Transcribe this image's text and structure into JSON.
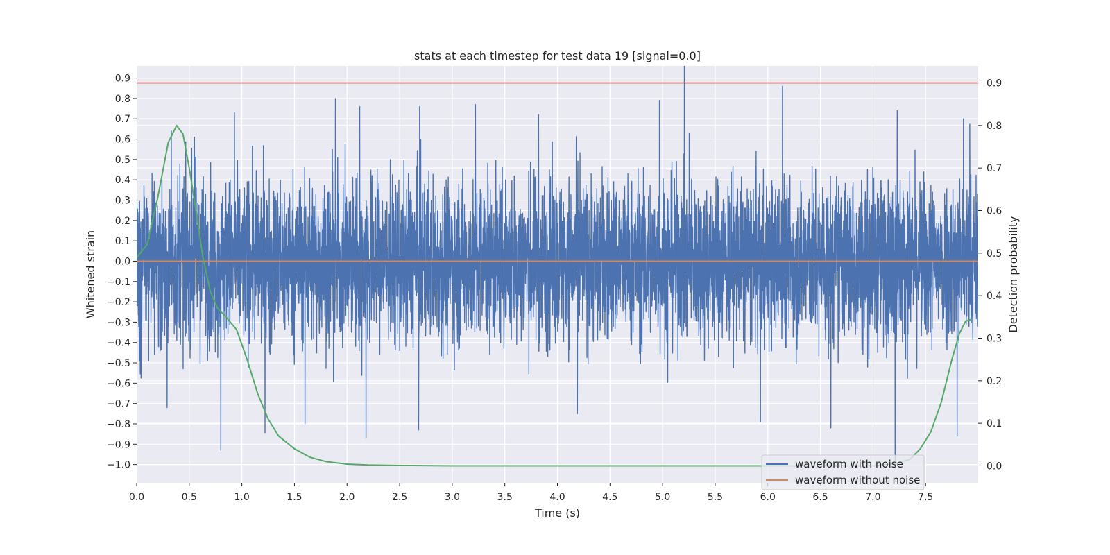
{
  "chart_data": {
    "type": "line",
    "title": "stats at each timestep for test data 19 [signal=0.0]",
    "xlabel": "Time (s)",
    "ylabel": "Whitened strain",
    "y2label": "Detection probability",
    "xlim": [
      0.0,
      8.0
    ],
    "ylim": [
      -1.09,
      0.96
    ],
    "y2lim": [
      -0.04,
      0.94
    ],
    "grid": true,
    "legend_placement": "lower-right",
    "x_ticks": [
      "0.0",
      "0.5",
      "1.0",
      "1.5",
      "2.0",
      "2.5",
      "3.0",
      "3.5",
      "4.0",
      "4.5",
      "5.0",
      "5.5",
      "6.0",
      "6.5",
      "7.0",
      "7.5"
    ],
    "y_ticks": [
      "0.9",
      "0.8",
      "0.7",
      "0.6",
      "0.5",
      "0.4",
      "0.3",
      "0.2",
      "0.1",
      "0.0",
      "−0.1",
      "−0.2",
      "−0.3",
      "−0.4",
      "−0.5",
      "−0.6",
      "−0.7",
      "−0.8",
      "−0.9",
      "−1.0"
    ],
    "y2_ticks": [
      "0.9",
      "0.8",
      "0.7",
      "0.6",
      "0.5",
      "0.4",
      "0.3",
      "0.2",
      "0.1",
      "0.0"
    ],
    "threshold": {
      "value": 0.9,
      "axis": "y2",
      "color": "#c44e52"
    },
    "series": [
      {
        "name": "waveform with noise",
        "axis": "y",
        "color": "#4c72b0",
        "envelope_typical": 0.42,
        "peaks": [
          {
            "x": 0.33,
            "y": 0.64
          },
          {
            "x": 0.55,
            "y": 0.61
          },
          {
            "x": 0.93,
            "y": 0.73
          },
          {
            "x": 1.89,
            "y": 0.8
          },
          {
            "x": 2.12,
            "y": 0.76
          },
          {
            "x": 2.69,
            "y": 0.76
          },
          {
            "x": 3.22,
            "y": 0.77
          },
          {
            "x": 3.82,
            "y": 0.72
          },
          {
            "x": 4.97,
            "y": 0.79
          },
          {
            "x": 6.14,
            "y": 0.86
          },
          {
            "x": 7.23,
            "y": 0.74
          },
          {
            "x": 7.86,
            "y": 0.7
          },
          {
            "x": 0.29,
            "y": -0.72
          },
          {
            "x": 0.8,
            "y": -0.93
          },
          {
            "x": 1.6,
            "y": -0.8
          },
          {
            "x": 2.18,
            "y": -0.87
          },
          {
            "x": 2.68,
            "y": -0.83
          },
          {
            "x": 4.19,
            "y": -0.75
          },
          {
            "x": 5.93,
            "y": -0.79
          },
          {
            "x": 6.6,
            "y": -0.82
          },
          {
            "x": 7.21,
            "y": -0.99
          },
          {
            "x": 7.8,
            "y": -0.86
          }
        ]
      },
      {
        "name": "waveform without noise",
        "axis": "y",
        "color": "#dd8452",
        "x": [
          0.0,
          8.0
        ],
        "y": [
          0.0,
          0.0
        ]
      },
      {
        "axis": "y2",
        "color": "#55a868",
        "x": [
          0.0,
          0.1,
          0.2,
          0.3,
          0.38,
          0.44,
          0.5,
          0.57,
          0.63,
          0.7,
          0.77,
          0.85,
          0.95,
          1.05,
          1.15,
          1.25,
          1.35,
          1.5,
          1.65,
          1.8,
          2.0,
          2.2,
          2.5,
          3.0,
          4.0,
          5.0,
          6.0,
          6.5,
          7.0,
          7.2,
          7.35,
          7.45,
          7.55,
          7.65,
          7.75,
          7.82,
          7.88,
          7.95
        ],
        "y": [
          0.49,
          0.52,
          0.63,
          0.76,
          0.8,
          0.78,
          0.7,
          0.59,
          0.49,
          0.41,
          0.37,
          0.35,
          0.32,
          0.25,
          0.17,
          0.11,
          0.07,
          0.04,
          0.02,
          0.01,
          0.004,
          0.002,
          0.001,
          0.0,
          0.0,
          0.0,
          0.0,
          0.0,
          0.0,
          0.005,
          0.015,
          0.04,
          0.08,
          0.15,
          0.25,
          0.31,
          0.34,
          0.345
        ]
      }
    ]
  }
}
